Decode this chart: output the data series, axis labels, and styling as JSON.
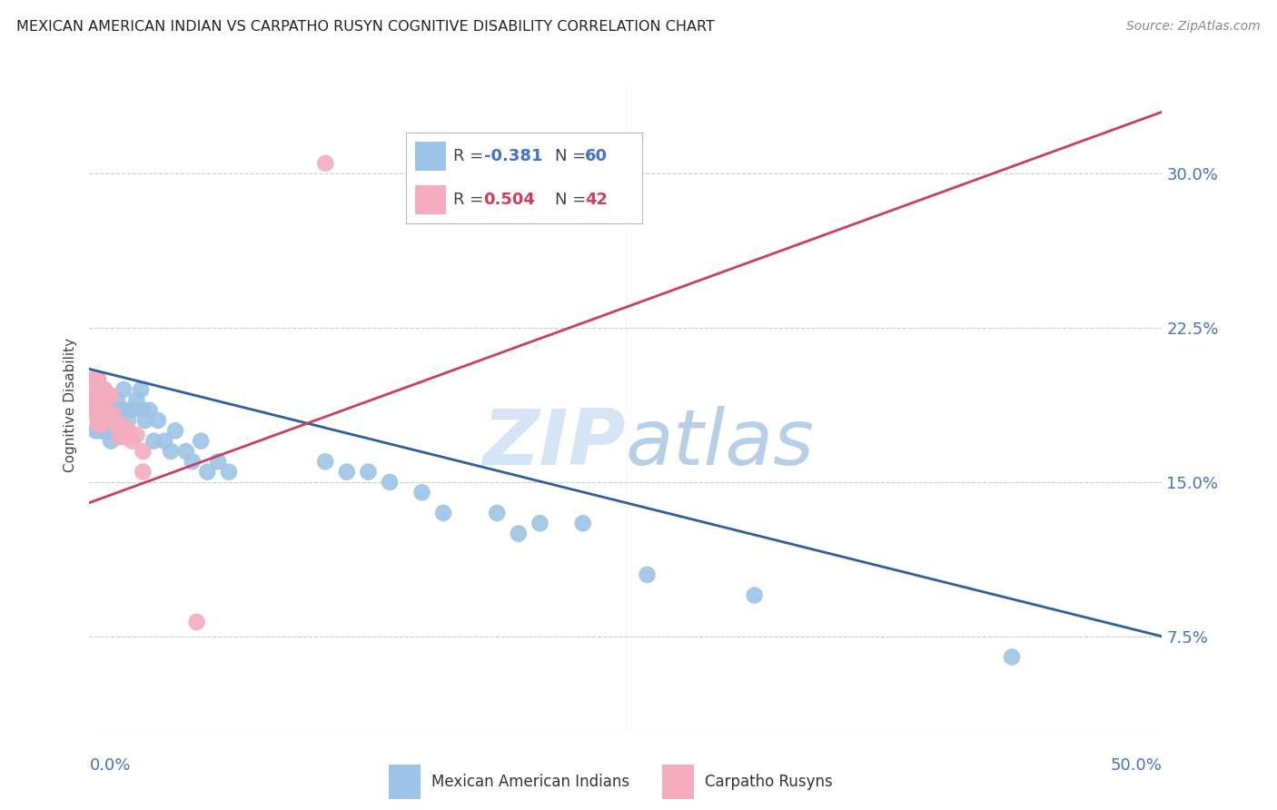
{
  "title": "MEXICAN AMERICAN INDIAN VS CARPATHO RUSYN COGNITIVE DISABILITY CORRELATION CHART",
  "source": "Source: ZipAtlas.com",
  "ylabel": "Cognitive Disability",
  "y_tick_labels": [
    "7.5%",
    "15.0%",
    "22.5%",
    "30.0%"
  ],
  "y_tick_values": [
    0.075,
    0.15,
    0.225,
    0.3
  ],
  "x_range": [
    0.0,
    0.5
  ],
  "y_range": [
    0.03,
    0.345
  ],
  "blue_color": "#9DC3E6",
  "pink_color": "#F4ACBE",
  "blue_line_color": "#2E5FA3",
  "pink_line_color": "#C9405A",
  "blue_r_color": "#4472C4",
  "pink_r_color": "#C9405A",
  "watermark_color": "#D5E5F5",
  "background_color": "#FFFFFF",
  "blue_scatter_x": [
    0.002,
    0.003,
    0.003,
    0.004,
    0.004,
    0.005,
    0.005,
    0.005,
    0.006,
    0.006,
    0.006,
    0.007,
    0.007,
    0.008,
    0.008,
    0.008,
    0.009,
    0.009,
    0.01,
    0.01,
    0.01,
    0.011,
    0.011,
    0.012,
    0.013,
    0.013,
    0.015,
    0.016,
    0.017,
    0.018,
    0.02,
    0.022,
    0.024,
    0.025,
    0.026,
    0.028,
    0.03,
    0.032,
    0.035,
    0.038,
    0.04,
    0.045,
    0.048,
    0.052,
    0.055,
    0.06,
    0.065,
    0.11,
    0.12,
    0.13,
    0.14,
    0.155,
    0.165,
    0.19,
    0.2,
    0.21,
    0.23,
    0.26,
    0.31,
    0.43
  ],
  "blue_scatter_y": [
    0.185,
    0.19,
    0.175,
    0.2,
    0.18,
    0.195,
    0.185,
    0.175,
    0.195,
    0.185,
    0.175,
    0.195,
    0.18,
    0.19,
    0.185,
    0.175,
    0.185,
    0.175,
    0.185,
    0.18,
    0.17,
    0.185,
    0.175,
    0.185,
    0.19,
    0.18,
    0.185,
    0.195,
    0.185,
    0.18,
    0.185,
    0.19,
    0.195,
    0.185,
    0.18,
    0.185,
    0.17,
    0.18,
    0.17,
    0.165,
    0.175,
    0.165,
    0.16,
    0.17,
    0.155,
    0.16,
    0.155,
    0.16,
    0.155,
    0.155,
    0.15,
    0.145,
    0.135,
    0.135,
    0.125,
    0.13,
    0.13,
    0.105,
    0.095,
    0.065
  ],
  "pink_scatter_x": [
    0.001,
    0.001,
    0.002,
    0.002,
    0.002,
    0.002,
    0.003,
    0.003,
    0.003,
    0.003,
    0.004,
    0.004,
    0.004,
    0.004,
    0.004,
    0.005,
    0.005,
    0.005,
    0.006,
    0.006,
    0.007,
    0.007,
    0.007,
    0.008,
    0.008,
    0.009,
    0.009,
    0.01,
    0.01,
    0.011,
    0.012,
    0.013,
    0.014,
    0.015,
    0.016,
    0.018,
    0.02,
    0.022,
    0.025,
    0.025,
    0.11,
    0.05
  ],
  "pink_scatter_y": [
    0.2,
    0.185,
    0.2,
    0.195,
    0.19,
    0.185,
    0.2,
    0.195,
    0.19,
    0.185,
    0.2,
    0.195,
    0.188,
    0.183,
    0.178,
    0.195,
    0.183,
    0.178,
    0.192,
    0.183,
    0.195,
    0.188,
    0.18,
    0.19,
    0.183,
    0.192,
    0.183,
    0.192,
    0.183,
    0.183,
    0.178,
    0.178,
    0.172,
    0.178,
    0.172,
    0.175,
    0.17,
    0.173,
    0.165,
    0.155,
    0.305,
    0.082
  ],
  "blue_line_x0": 0.0,
  "blue_line_y0": 0.205,
  "blue_line_x1": 0.5,
  "blue_line_y1": 0.075,
  "pink_line_x0": 0.0,
  "pink_line_y0": 0.14,
  "pink_line_x1": 0.5,
  "pink_line_y1": 0.33
}
